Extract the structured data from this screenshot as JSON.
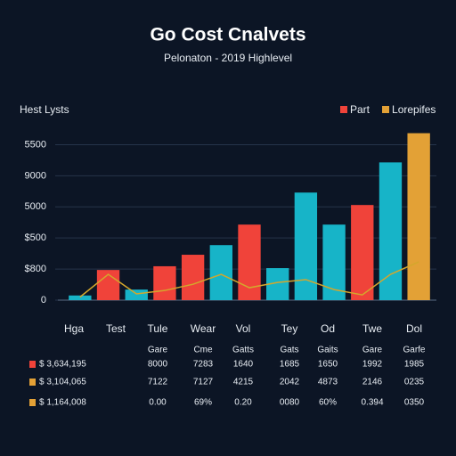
{
  "chart_data": {
    "type": "bar",
    "title": "Go Cost Cnalvets",
    "subtitle": "Pelonaton - 2019 Highlevel",
    "y_label": "Hest Lysts",
    "categories": [
      null,
      null,
      null,
      null,
      null,
      null,
      null,
      null,
      null,
      null,
      null,
      null,
      null
    ],
    "series": [
      {
        "color": "#17b4c8",
        "values": [
          150,
          null,
          340,
          null,
          null,
          1770,
          null,
          1030,
          3460,
          2430,
          null,
          4430,
          null
        ]
      },
      {
        "name": "Part",
        "color": "#f0433a",
        "values": [
          null,
          970,
          null,
          1090,
          1460,
          null,
          2430,
          null,
          null,
          null,
          3060,
          null,
          null
        ]
      },
      {
        "name": "Lorepifes",
        "color": "#e3a136",
        "values": [
          null,
          null,
          null,
          null,
          null,
          null,
          null,
          null,
          null,
          null,
          null,
          null,
          5370
        ]
      },
      {
        "type": "line",
        "color": "#d4a72c",
        "values": [
          100,
          830,
          200,
          310,
          510,
          830,
          400,
          570,
          660,
          340,
          170,
          830,
          1230
        ]
      }
    ],
    "ylim": [
      0,
      5500
    ],
    "yticks": [
      0,
      {
        "value": 1000,
        "label": "$800"
      },
      {
        "value": 2000,
        "label": "$500"
      },
      {
        "value": 3000,
        "label": "5000"
      },
      {
        "value": 4000,
        "label": "9000"
      },
      {
        "value": 5000,
        "label": "5500"
      }
    ],
    "grid": true
  },
  "table": {
    "columns": [
      "Hga",
      "Test",
      "Tule",
      "Wear",
      "Vol",
      "Tey",
      "Od",
      "Twe",
      "Dol"
    ],
    "subheaders": [
      null,
      null,
      "Gare",
      "Cme",
      "Gatts",
      "Gats",
      "Gaits",
      "Gare",
      "Garfe"
    ],
    "rows": [
      {
        "label": "$ 3,634,195",
        "color": "#f0433a",
        "cells": [
          null,
          null,
          "8000",
          "7283",
          "1640",
          "1685",
          "1650",
          "1992",
          "1985"
        ]
      },
      {
        "label": "$ 3,104,065",
        "color": "#e3a136",
        "cells": [
          null,
          null,
          "7122",
          "7127",
          "4215",
          "2042",
          "4873",
          "2146",
          "0235"
        ]
      },
      {
        "label": "$ 1,164,008",
        "color": "#e3a136",
        "cells": [
          null,
          null,
          "0.00",
          "69%",
          "0.20",
          "0080",
          "60%",
          "0.394",
          "0350"
        ]
      }
    ]
  }
}
